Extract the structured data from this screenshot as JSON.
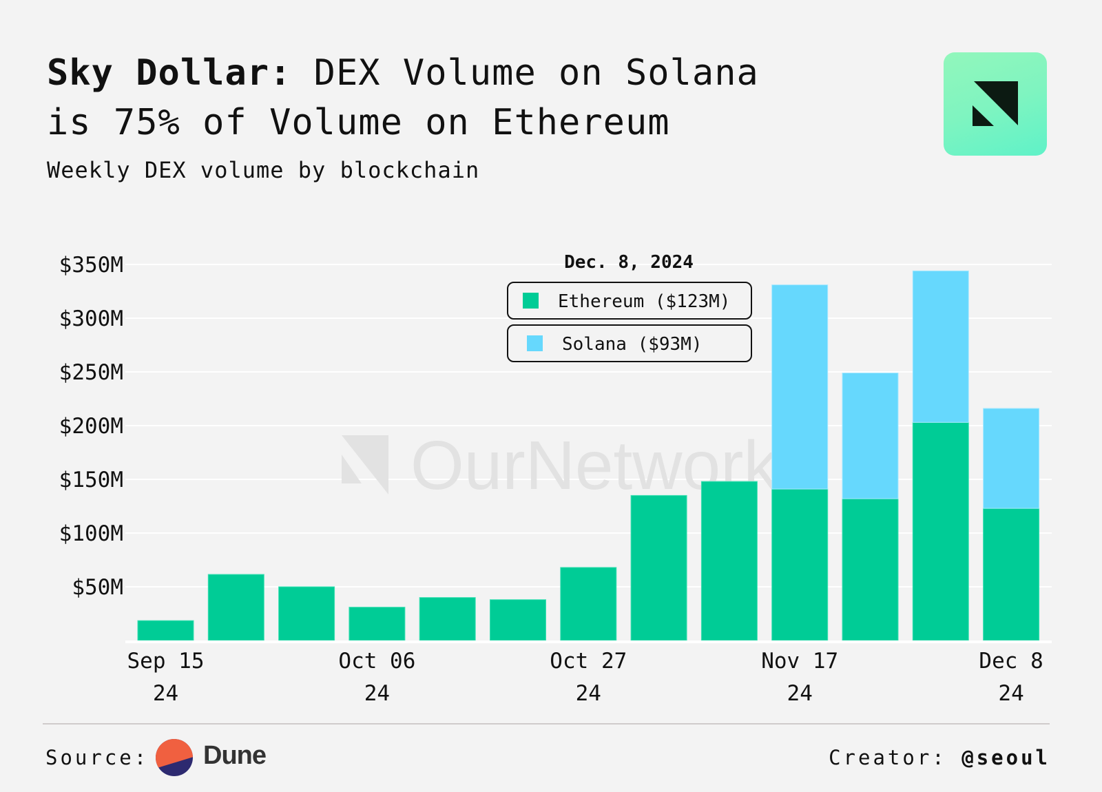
{
  "header": {
    "title_bold": "Sky Dollar:",
    "title_rest_line1": " DEX Volume on Solana",
    "title_line2": "is 75% of Volume on Ethereum",
    "subtitle": "Weekly DEX volume by blockchain",
    "logo_icon": "ournetwork-logo-icon"
  },
  "watermark": {
    "text": "OurNetwork"
  },
  "legend": {
    "date": "Dec. 8, 2024",
    "items": [
      {
        "label": "Ethereum ($123M)",
        "color": "#00cc96"
      },
      {
        "label": "Solana ($93M)",
        "color": "#66d8fd"
      }
    ]
  },
  "chart_data": {
    "type": "bar",
    "stacked": true,
    "title": "Sky Dollar: DEX Volume on Solana is 75% of Volume on Ethereum",
    "subtitle": "Weekly DEX volume by blockchain",
    "xlabel": "",
    "ylabel": "",
    "ylim": [
      0,
      350
    ],
    "yunit": "$M",
    "yticks": [
      50,
      100,
      150,
      200,
      250,
      300,
      350
    ],
    "ytick_labels": [
      "$50M",
      "$100M",
      "$150M",
      "$200M",
      "$250M",
      "$300M",
      "$350M"
    ],
    "grid": true,
    "legend_position": "top-center",
    "categories": [
      "2024-09-15",
      "2024-09-22",
      "2024-09-29",
      "2024-10-06",
      "2024-10-13",
      "2024-10-20",
      "2024-10-27",
      "2024-11-03",
      "2024-11-10",
      "2024-11-17",
      "2024-11-24",
      "2024-12-01",
      "2024-12-08"
    ],
    "xtick_indices": [
      0,
      3,
      6,
      9,
      12
    ],
    "xtick_labels": [
      [
        "Sep 15",
        "24"
      ],
      [
        "Oct 06",
        "24"
      ],
      [
        "Oct 27",
        "24"
      ],
      [
        "Nov 17",
        "24"
      ],
      [
        "Dec 8",
        "24"
      ]
    ],
    "series": [
      {
        "name": "Ethereum",
        "color": "#00cc96",
        "values": [
          18.5,
          61.5,
          50,
          31,
          40,
          38,
          68,
          135,
          148,
          141,
          132,
          203,
          123
        ]
      },
      {
        "name": "Solana",
        "color": "#66d8fd",
        "values": [
          0,
          0,
          0,
          0,
          0,
          0,
          0,
          0,
          0,
          190,
          117,
          141,
          93
        ]
      }
    ]
  },
  "footer": {
    "source_label": "Source:",
    "source_name": "Dune",
    "creator_label": "Creator:",
    "creator_handle": "@seoul"
  }
}
